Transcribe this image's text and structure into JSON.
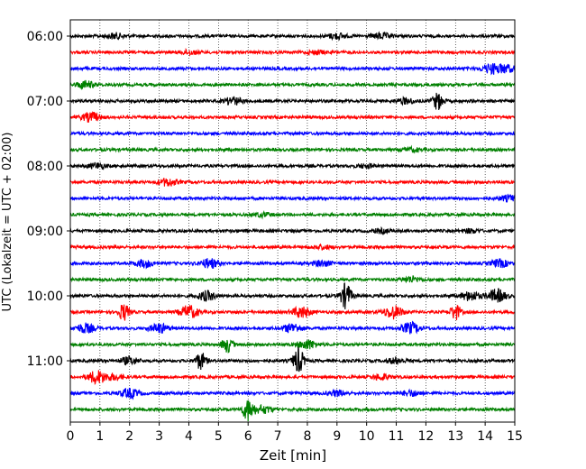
{
  "chart_data": {
    "type": "line",
    "title": "",
    "xlabel": "Zeit  [min]",
    "ylabel": "UTC (Lokalzeit = UTC + 02:00)",
    "xlim": [
      0,
      15
    ],
    "x_ticks": [
      0,
      1,
      2,
      3,
      4,
      5,
      6,
      7,
      8,
      9,
      10,
      11,
      12,
      13,
      14,
      15
    ],
    "x_tick_labels": [
      "0",
      "1",
      "2",
      "3",
      "4",
      "5",
      "6",
      "7",
      "8",
      "9",
      "10",
      "11",
      "12",
      "13",
      "14",
      "15"
    ],
    "y_tick_labels": [
      "06:00",
      "07:00",
      "08:00",
      "09:00",
      "10:00",
      "11:00"
    ],
    "y_tick_trace_index": [
      0,
      4,
      8,
      12,
      16,
      20
    ],
    "minutes_per_trace": 15,
    "grid": "vertical dotted lines at each minute",
    "trace_colors": [
      "#000000",
      "#ff0000",
      "#0000ff",
      "#008000"
    ],
    "traces": [
      {
        "start": "06:00",
        "color": "#000000",
        "events": [
          {
            "t": 1.5,
            "amp": 3
          },
          {
            "t": 9.0,
            "amp": 3
          },
          {
            "t": 10.5,
            "amp": 3
          }
        ]
      },
      {
        "start": "06:15",
        "color": "#ff0000",
        "events": [
          {
            "t": 4.0,
            "amp": 2
          },
          {
            "t": 8.3,
            "amp": 2
          }
        ]
      },
      {
        "start": "06:30",
        "color": "#0000ff",
        "events": [
          {
            "t": 14.2,
            "amp": 5
          },
          {
            "t": 14.7,
            "amp": 4
          }
        ]
      },
      {
        "start": "06:45",
        "color": "#008000",
        "events": [
          {
            "t": 0.5,
            "amp": 4
          }
        ]
      },
      {
        "start": "07:00",
        "color": "#000000",
        "events": [
          {
            "t": 5.5,
            "amp": 4
          },
          {
            "t": 11.3,
            "amp": 3
          },
          {
            "t": 12.4,
            "amp": 9
          }
        ]
      },
      {
        "start": "07:15",
        "color": "#ff0000",
        "events": [
          {
            "t": 0.7,
            "amp": 5
          }
        ]
      },
      {
        "start": "07:30",
        "color": "#0000ff",
        "events": []
      },
      {
        "start": "07:45",
        "color": "#008000",
        "events": [
          {
            "t": 11.5,
            "amp": 2
          }
        ]
      },
      {
        "start": "08:00",
        "color": "#000000",
        "events": [
          {
            "t": 0.9,
            "amp": 3
          },
          {
            "t": 10.0,
            "amp": 2
          }
        ]
      },
      {
        "start": "08:15",
        "color": "#ff0000",
        "events": [
          {
            "t": 3.3,
            "amp": 4
          }
        ]
      },
      {
        "start": "08:30",
        "color": "#0000ff",
        "events": [
          {
            "t": 14.8,
            "amp": 3
          }
        ]
      },
      {
        "start": "08:45",
        "color": "#008000",
        "events": [
          {
            "t": 6.5,
            "amp": 2
          }
        ]
      },
      {
        "start": "09:00",
        "color": "#000000",
        "events": [
          {
            "t": 10.5,
            "amp": 2
          },
          {
            "t": 13.5,
            "amp": 2
          }
        ]
      },
      {
        "start": "09:15",
        "color": "#ff0000",
        "events": [
          {
            "t": 8.5,
            "amp": 2
          }
        ]
      },
      {
        "start": "09:30",
        "color": "#0000ff",
        "events": [
          {
            "t": 2.5,
            "amp": 4
          },
          {
            "t": 4.7,
            "amp": 5
          },
          {
            "t": 8.5,
            "amp": 3
          },
          {
            "t": 14.5,
            "amp": 4
          }
        ]
      },
      {
        "start": "09:45",
        "color": "#008000",
        "events": [
          {
            "t": 11.5,
            "amp": 3
          }
        ]
      },
      {
        "start": "10:00",
        "color": "#000000",
        "events": [
          {
            "t": 4.6,
            "amp": 5
          },
          {
            "t": 9.3,
            "amp": 14
          },
          {
            "t": 13.5,
            "amp": 5
          },
          {
            "t": 14.4,
            "amp": 7
          }
        ]
      },
      {
        "start": "10:15",
        "color": "#ff0000",
        "events": [
          {
            "t": 1.8,
            "amp": 9
          },
          {
            "t": 4.0,
            "amp": 7
          },
          {
            "t": 7.8,
            "amp": 6
          },
          {
            "t": 10.9,
            "amp": 7
          },
          {
            "t": 13.0,
            "amp": 8
          }
        ]
      },
      {
        "start": "10:30",
        "color": "#0000ff",
        "events": [
          {
            "t": 0.5,
            "amp": 5
          },
          {
            "t": 3.0,
            "amp": 5
          },
          {
            "t": 7.5,
            "amp": 5
          },
          {
            "t": 11.5,
            "amp": 6
          }
        ]
      },
      {
        "start": "10:45",
        "color": "#008000",
        "events": [
          {
            "t": 5.3,
            "amp": 8
          },
          {
            "t": 8.0,
            "amp": 5
          }
        ]
      },
      {
        "start": "11:00",
        "color": "#000000",
        "events": [
          {
            "t": 2.0,
            "amp": 4
          },
          {
            "t": 4.4,
            "amp": 9
          },
          {
            "t": 7.7,
            "amp": 14
          },
          {
            "t": 11.0,
            "amp": 3
          }
        ]
      },
      {
        "start": "11:15",
        "color": "#ff0000",
        "events": [
          {
            "t": 0.9,
            "amp": 7
          },
          {
            "t": 1.5,
            "amp": 3
          },
          {
            "t": 10.5,
            "amp": 3
          }
        ]
      },
      {
        "start": "11:30",
        "color": "#0000ff",
        "events": [
          {
            "t": 2.0,
            "amp": 5
          },
          {
            "t": 9.0,
            "amp": 3
          },
          {
            "t": 11.5,
            "amp": 3
          }
        ]
      },
      {
        "start": "11:45",
        "color": "#008000",
        "events": [
          {
            "t": 6.0,
            "amp": 12
          },
          {
            "t": 6.5,
            "amp": 4
          }
        ]
      }
    ]
  }
}
